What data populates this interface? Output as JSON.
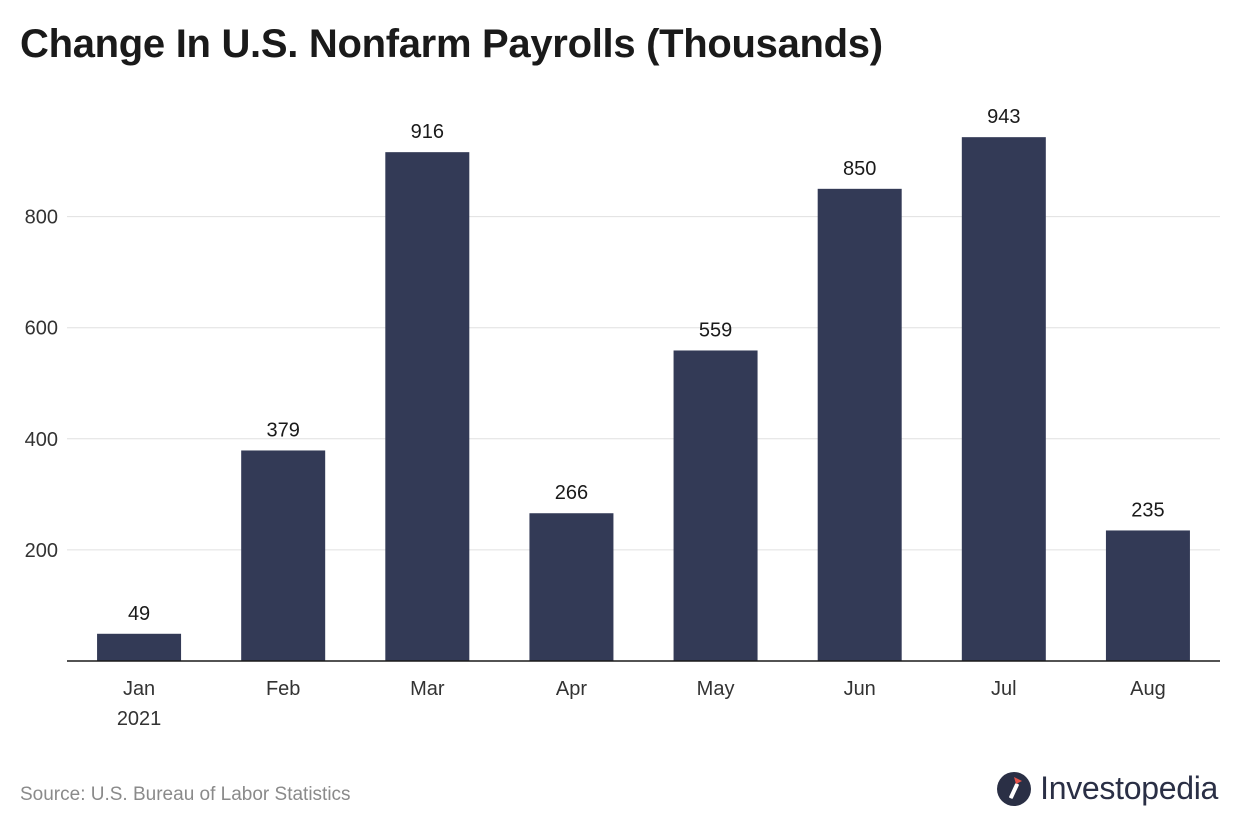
{
  "title": "Change In U.S. Nonfarm Payrolls (Thousands)",
  "source": "Source: U.S. Bureau of Labor Statistics",
  "brand": "Investopedia",
  "colors": {
    "bar": "#333a56",
    "grid": "#e0e0e0",
    "axis": "#1a1a1a"
  },
  "chart_data": {
    "type": "bar",
    "title": "Change In U.S. Nonfarm Payrolls (Thousands)",
    "categories": [
      "Jan",
      "Feb",
      "Mar",
      "Apr",
      "May",
      "Jun",
      "Jul",
      "Aug"
    ],
    "category_sublabels": [
      "2021",
      "",
      "",
      "",
      "",
      "",
      "",
      ""
    ],
    "values": [
      49,
      379,
      916,
      266,
      559,
      850,
      943,
      235
    ],
    "data_labels": [
      "49",
      "379",
      "916",
      "266",
      "559",
      "850",
      "943",
      "235"
    ],
    "yticks": [
      200,
      400,
      600,
      800
    ],
    "ylim": [
      0,
      1000
    ],
    "xlabel": "",
    "ylabel": "",
    "grid": true,
    "legend": "none"
  }
}
